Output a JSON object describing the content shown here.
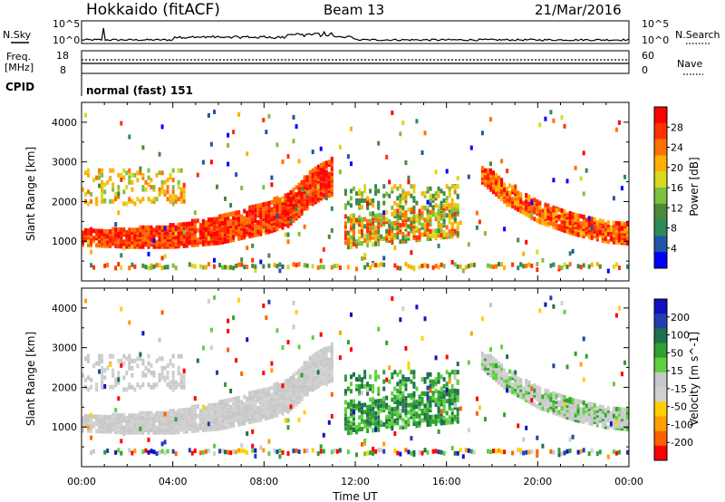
{
  "header": {
    "station": "Hokkaido (fitACF)",
    "beam": "Beam 13",
    "date": "21/Mar/2016"
  },
  "noise_panel": {
    "left_label": "N.Sky",
    "right_label": "N.Search",
    "ticks": [
      "10^5",
      "10^0"
    ]
  },
  "freq_panel": {
    "left_label_line1": "Freq.",
    "left_label_line2": "[MHz]",
    "left_ticks": [
      "18",
      "8"
    ],
    "right_label": "Nave",
    "right_ticks": [
      "60",
      "0"
    ]
  },
  "cpid_panel": {
    "label": "CPID",
    "program": "normal (fast) 151"
  },
  "x_axis": {
    "title": "Time UT",
    "ticks": [
      "00:00",
      "04:00",
      "08:00",
      "12:00",
      "16:00",
      "20:00",
      "00:00"
    ]
  },
  "colors": {
    "power_scale": [
      "#0000ff",
      "#2255aa",
      "#2e8b57",
      "#4a8a3a",
      "#7fc040",
      "#d8d820",
      "#ffb000",
      "#ff7000",
      "#ff3000",
      "#ff0000"
    ],
    "velocity_scale": [
      "#1010c0",
      "#2040b0",
      "#207050",
      "#30a030",
      "#60d040",
      "#c8c8c8",
      "#d0d0d0",
      "#ffd000",
      "#ffa000",
      "#ff6000",
      "#ff0000"
    ]
  },
  "chart_data": [
    {
      "type": "heatmap",
      "title": "",
      "xlabel": "Time UT",
      "ylabel": "Slant Range [km]",
      "x_ticks": [
        "00:00",
        "04:00",
        "08:00",
        "12:00",
        "16:00",
        "20:00",
        "00:00"
      ],
      "xlim_hours": [
        0,
        24
      ],
      "ylim": [
        0,
        4500
      ],
      "y_ticks": [
        1000,
        2000,
        3000,
        4000
      ],
      "colorbar": {
        "label": "Power [dB]",
        "ticks": [
          "28",
          "24",
          "20",
          "16",
          "12",
          "8",
          "4"
        ],
        "range": [
          0,
          32
        ]
      },
      "features": [
        {
          "name": "main echo band",
          "t": [
            0,
            2,
            4,
            6,
            8,
            9,
            10,
            10.5,
            11
          ],
          "r": [
            1150,
            1150,
            1200,
            1350,
            1650,
            1850,
            2400,
            2600,
            2700
          ]
        },
        {
          "name": "late echo band",
          "t": [
            17.5,
            18.5,
            20,
            21.5,
            23,
            24
          ],
          "r": [
            2800,
            2300,
            1800,
            1500,
            1300,
            1250
          ]
        }
      ]
    },
    {
      "type": "heatmap",
      "title": "",
      "xlabel": "Time UT",
      "ylabel": "Slant Range [km]",
      "x_ticks": [
        "00:00",
        "04:00",
        "08:00",
        "12:00",
        "16:00",
        "20:00",
        "00:00"
      ],
      "xlim_hours": [
        0,
        24
      ],
      "ylim": [
        0,
        4500
      ],
      "y_ticks": [
        1000,
        2000,
        3000,
        4000
      ],
      "colorbar": {
        "label": "Velocity [m s^-1]",
        "ticks": [
          "200",
          "100",
          "50",
          "15",
          "-15",
          "-50",
          "-100",
          "-200"
        ],
        "range": [
          -250,
          250
        ]
      }
    }
  ]
}
